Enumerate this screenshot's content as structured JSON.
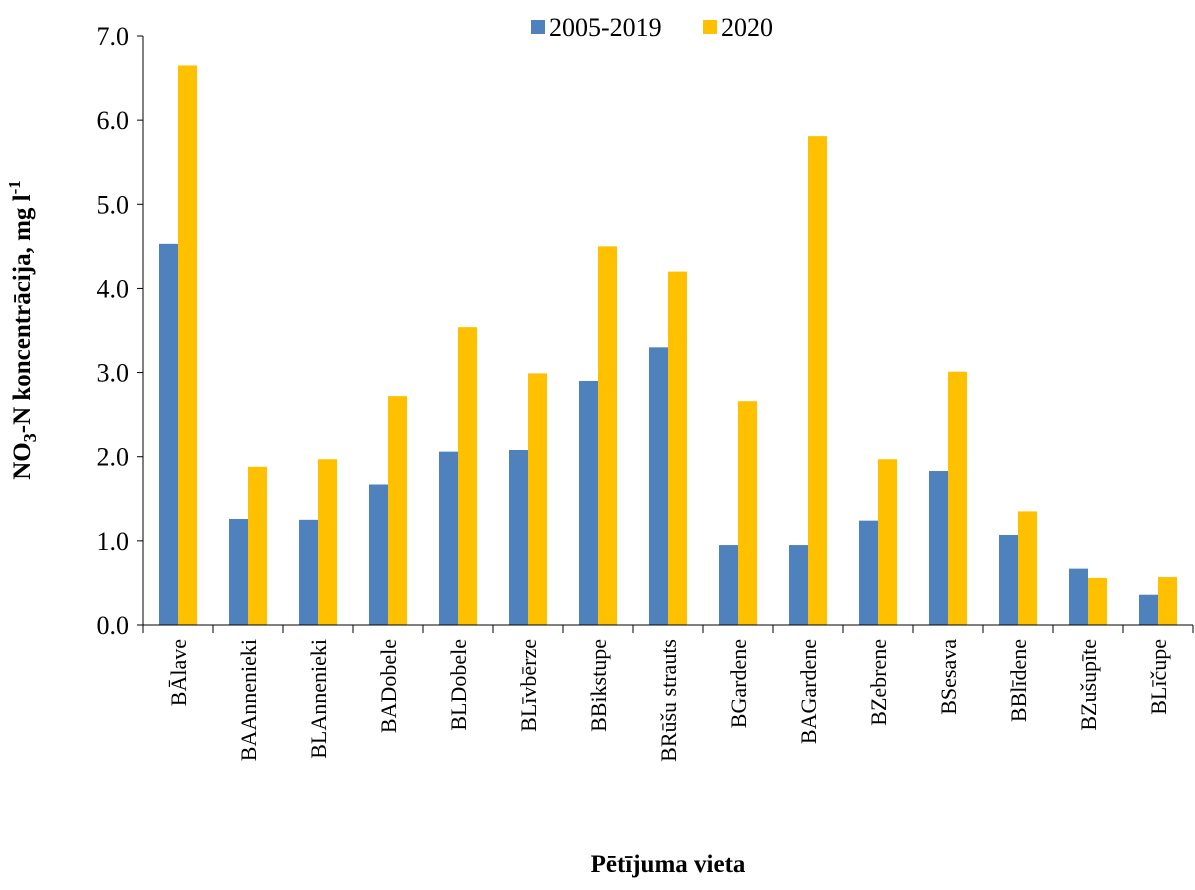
{
  "chart_data": {
    "type": "bar",
    "y_label": [
      "NO",
      "3",
      "-N koncentrācija, mg l",
      "-1"
    ],
    "x_label": "Pētījuma vieta",
    "categories": [
      "BĀlave",
      "BAAnnenieki",
      "BLAnnenieki",
      "BADobele",
      "BLDobele",
      "BLīvbērze",
      "BBikstupe",
      "BRūšu strauts",
      "BGardene",
      "BAGardene",
      "BZebrene",
      "BSesava",
      "BBlīdene",
      "BZušupīte",
      "BLīčupe"
    ],
    "series": [
      {
        "name": "2005-2019",
        "color": "#4f81bd",
        "values": [
          4.53,
          1.26,
          1.25,
          1.67,
          2.06,
          2.08,
          2.9,
          3.3,
          0.95,
          0.95,
          1.24,
          1.83,
          1.07,
          0.67,
          0.36
        ]
      },
      {
        "name": "2020",
        "color": "#ffc000",
        "values": [
          6.65,
          1.88,
          1.97,
          2.72,
          3.54,
          2.99,
          4.5,
          4.2,
          2.66,
          5.81,
          1.97,
          3.01,
          1.35,
          0.56,
          0.57
        ]
      }
    ],
    "ylim": [
      0,
      7
    ],
    "yticks": [
      {
        "value": 0,
        "label": "0.0"
      },
      {
        "value": 1,
        "label": "1.0"
      },
      {
        "value": 2,
        "label": "2.0"
      },
      {
        "value": 3,
        "label": "3.0"
      },
      {
        "value": 4,
        "label": "4.0"
      },
      {
        "value": 5,
        "label": "5.0"
      },
      {
        "value": 6,
        "label": "6.0"
      },
      {
        "value": 7,
        "label": "7.0"
      }
    ],
    "legend": "top"
  }
}
